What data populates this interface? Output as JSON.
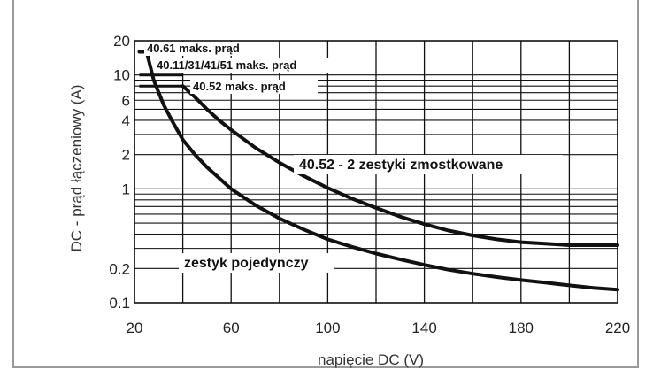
{
  "chart_data": {
    "type": "line",
    "xlabel": "napięcie DC (V)",
    "ylabel": "DC - prąd łączeniowy (A)",
    "xlim": [
      20,
      220
    ],
    "ylim": [
      0.1,
      20
    ],
    "yscale": "log",
    "grid": true,
    "x_ticks": [
      20,
      60,
      100,
      140,
      180,
      220
    ],
    "y_ticks": [
      {
        "value": 20,
        "label": "20"
      },
      {
        "value": 10,
        "label": "10"
      },
      {
        "value": 6,
        "label": "6"
      },
      {
        "value": 4,
        "label": "4"
      },
      {
        "value": 2,
        "label": "2"
      },
      {
        "value": 1,
        "label": "1"
      },
      {
        "value": 0.2,
        "label": "0.2"
      },
      {
        "value": 0.1,
        "label": "0.1"
      }
    ],
    "series": [
      {
        "name": "zestyk pojedynczy",
        "x": [
          22,
          25,
          28,
          32,
          36,
          40,
          45,
          50,
          60,
          70,
          80,
          90,
          100,
          110,
          120,
          130,
          140,
          150,
          160,
          170,
          180,
          190,
          200,
          210,
          220
        ],
        "y": [
          16,
          16,
          9,
          5.5,
          3.8,
          2.7,
          2.0,
          1.55,
          1.0,
          0.72,
          0.55,
          0.44,
          0.36,
          0.31,
          0.27,
          0.24,
          0.215,
          0.195,
          0.18,
          0.168,
          0.158,
          0.15,
          0.142,
          0.135,
          0.13
        ]
      },
      {
        "name": "40.52 - 2 zestyki zmostkowane",
        "x": [
          40,
          45,
          50,
          55,
          60,
          70,
          80,
          90,
          100,
          110,
          120,
          130,
          140,
          150,
          160,
          170,
          180,
          190,
          200,
          210,
          220
        ],
        "y": [
          8,
          6.4,
          5.0,
          4.0,
          3.3,
          2.3,
          1.7,
          1.3,
          1.02,
          0.82,
          0.68,
          0.57,
          0.49,
          0.43,
          0.39,
          0.36,
          0.34,
          0.33,
          0.32,
          0.32,
          0.32
        ]
      }
    ],
    "limits": [
      {
        "label": "40.61 maks. prąd",
        "value": 16,
        "x_start": 22
      },
      {
        "label": "40.11/31/41/51 maks. prąd",
        "value": 10,
        "x_start": 22
      },
      {
        "label": "40.52 maks. prąd",
        "value": 8,
        "x_start": 22
      }
    ],
    "annotations": [
      {
        "text": "40.52 - 2 zestyki zmostkowane",
        "x": 165,
        "y": 1.9
      },
      {
        "text": "zestyk pojedynczy",
        "x": 72,
        "y": 0.25
      }
    ]
  }
}
